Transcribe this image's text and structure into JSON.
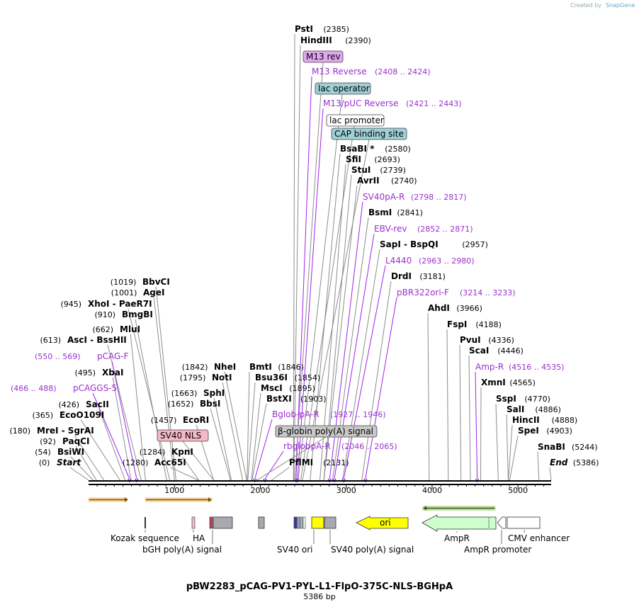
{
  "credit": {
    "text": "Created by",
    "brand": "SnapGene"
  },
  "plasmid": {
    "name": "pBW2283_pCAG-PV1-PYL-L1-FlpO-375C-NLS-BGHpA",
    "length_label": "5386 bp",
    "length": 5386
  },
  "colors": {
    "site": "#000000",
    "primer": "#9a2fd0",
    "primer_line": "#a020f0",
    "leader": "#8c8c8c",
    "orange": "#f3b33d",
    "green": "#7ab648"
  },
  "sites": [
    {
      "name": "Start",
      "pos": "(0)",
      "bp": 0,
      "italic": true
    },
    {
      "name": "BsiWI",
      "pos": "(54)",
      "bp": 54
    },
    {
      "name": "PaqCI",
      "pos": "(92)",
      "bp": 92
    },
    {
      "name": "MreI  -  SgrAI",
      "pos": "(180)",
      "bp": 180
    },
    {
      "name": "EcoO109I",
      "pos": "(365)",
      "bp": 365
    },
    {
      "name": "SacII",
      "pos": "(426)",
      "bp": 426
    },
    {
      "name": "XbaI",
      "pos": "(495)",
      "bp": 495
    },
    {
      "name": "AscI  -  BssHII",
      "pos": "(613)",
      "bp": 613
    },
    {
      "name": "MluI",
      "pos": "(662)",
      "bp": 662
    },
    {
      "name": "BmgBI",
      "pos": "(910)",
      "bp": 910
    },
    {
      "name": "XhoI  -  PaeR7I",
      "pos": "(945)",
      "bp": 945
    },
    {
      "name": "AgeI",
      "pos": "(1001)",
      "bp": 1001
    },
    {
      "name": "BbvCI",
      "pos": "(1019)",
      "bp": 1019
    },
    {
      "name": "Acc65I",
      "pos": "(1280)",
      "bp": 1280
    },
    {
      "name": "KpnI",
      "pos": "(1284)",
      "bp": 1284
    },
    {
      "name": "EcoRI",
      "pos": "(1457)",
      "bp": 1457
    },
    {
      "name": "BbsI",
      "pos": "(1652)",
      "bp": 1652
    },
    {
      "name": "SphI",
      "pos": "(1663)",
      "bp": 1663
    },
    {
      "name": "NotI",
      "pos": "(1795)",
      "bp": 1795
    },
    {
      "name": "NheI",
      "pos": "(1842)",
      "bp": 1842
    },
    {
      "name": "BmtI",
      "pos": "(1846)",
      "bp": 1846
    },
    {
      "name": "Bsu36I",
      "pos": "(1854)",
      "bp": 1854
    },
    {
      "name": "MscI",
      "pos": "(1895)",
      "bp": 1895
    },
    {
      "name": "BstXI",
      "pos": "(1903)",
      "bp": 1903
    },
    {
      "name": "PflMI",
      "pos": "(2131)",
      "bp": 2131
    },
    {
      "name": "PstI",
      "pos": "(2385)",
      "bp": 2385
    },
    {
      "name": "HindIII",
      "pos": "(2390)",
      "bp": 2390
    },
    {
      "name": "BsaBI *",
      "pos": "(2580)",
      "bp": 2580
    },
    {
      "name": "SfiI",
      "pos": "(2693)",
      "bp": 2693
    },
    {
      "name": "StuI",
      "pos": "(2739)",
      "bp": 2739
    },
    {
      "name": "AvrII",
      "pos": "(2740)",
      "bp": 2740
    },
    {
      "name": "BsmI",
      "pos": "(2841)",
      "bp": 2841
    },
    {
      "name": "SapI  -  BspQI",
      "pos": "(2957)",
      "bp": 2957
    },
    {
      "name": "DrdI",
      "pos": "(3181)",
      "bp": 3181
    },
    {
      "name": "AhdI",
      "pos": "(3966)",
      "bp": 3966
    },
    {
      "name": "FspI",
      "pos": "(4188)",
      "bp": 4188
    },
    {
      "name": "PvuI",
      "pos": "(4336)",
      "bp": 4336
    },
    {
      "name": "ScaI",
      "pos": "(4446)",
      "bp": 4446
    },
    {
      "name": "XmnI",
      "pos": "(4565)",
      "bp": 4565
    },
    {
      "name": "SspI",
      "pos": "(4770)",
      "bp": 4770
    },
    {
      "name": "SalI",
      "pos": "(4886)",
      "bp": 4886
    },
    {
      "name": "HincII",
      "pos": "(4888)",
      "bp": 4888
    },
    {
      "name": "SpeI",
      "pos": "(4903)",
      "bp": 4903
    },
    {
      "name": "SnaBI",
      "pos": "(5244)",
      "bp": 5244
    },
    {
      "name": "End",
      "pos": "(5386)",
      "bp": 5386,
      "italic": true
    }
  ],
  "primers": [
    {
      "name": "pCAGGS-5",
      "range": "(466 .. 488)",
      "bp": 477
    },
    {
      "name": "pCAG-F",
      "range": "(550 .. 569)",
      "bp": 560
    },
    {
      "name": "Bglob-pA-R",
      "range": "(1927 .. 1946)",
      "bp": 1936
    },
    {
      "name": "rbglobpA-R",
      "range": "(2046 .. 2065)",
      "bp": 2055
    },
    {
      "name": "M13 Reverse",
      "range": "(2408 .. 2424)",
      "bp": 2416
    },
    {
      "name": "M13/pUC Reverse",
      "range": "(2421 .. 2443)",
      "bp": 2432
    },
    {
      "name": "SV40pA-R",
      "range": "(2798 .. 2817)",
      "bp": 2807
    },
    {
      "name": "EBV-rev",
      "range": "(2852 .. 2871)",
      "bp": 2861
    },
    {
      "name": "L4440",
      "range": "(2963 .. 2980)",
      "bp": 2971
    },
    {
      "name": "pBR322ori-F",
      "range": "(3214 .. 3233)",
      "bp": 3223
    },
    {
      "name": "Amp-R",
      "range": "(4516 .. 4535)",
      "bp": 4525
    }
  ],
  "boxed_labels": [
    {
      "name": "SV40 NLS",
      "fill": "#f4b8c8"
    },
    {
      "name": "β-globin poly(A) signal",
      "fill": "#c8c8c8"
    },
    {
      "name": "M13 rev",
      "fill": "#e0a8f0"
    },
    {
      "name": "lac operator",
      "fill": "#9fcfd8"
    },
    {
      "name": "lac promoter",
      "fill": "#ffffff"
    },
    {
      "name": "CAP binding site",
      "fill": "#9fcfd8"
    }
  ],
  "ruler": {
    "ticks": [
      "1000",
      "2000",
      "3000",
      "4000",
      "5000"
    ]
  },
  "features": [
    {
      "name": "ori",
      "fill": "#ffff00"
    },
    {
      "name": "AmpR",
      "fill": "#ccffcc"
    }
  ],
  "feature_labels": [
    "Kozak sequence",
    "HA",
    "bGH poly(A) signal",
    "SV40 ori",
    "SV40 poly(A) signal",
    "AmpR",
    "AmpR promoter",
    "CMV enhancer"
  ]
}
